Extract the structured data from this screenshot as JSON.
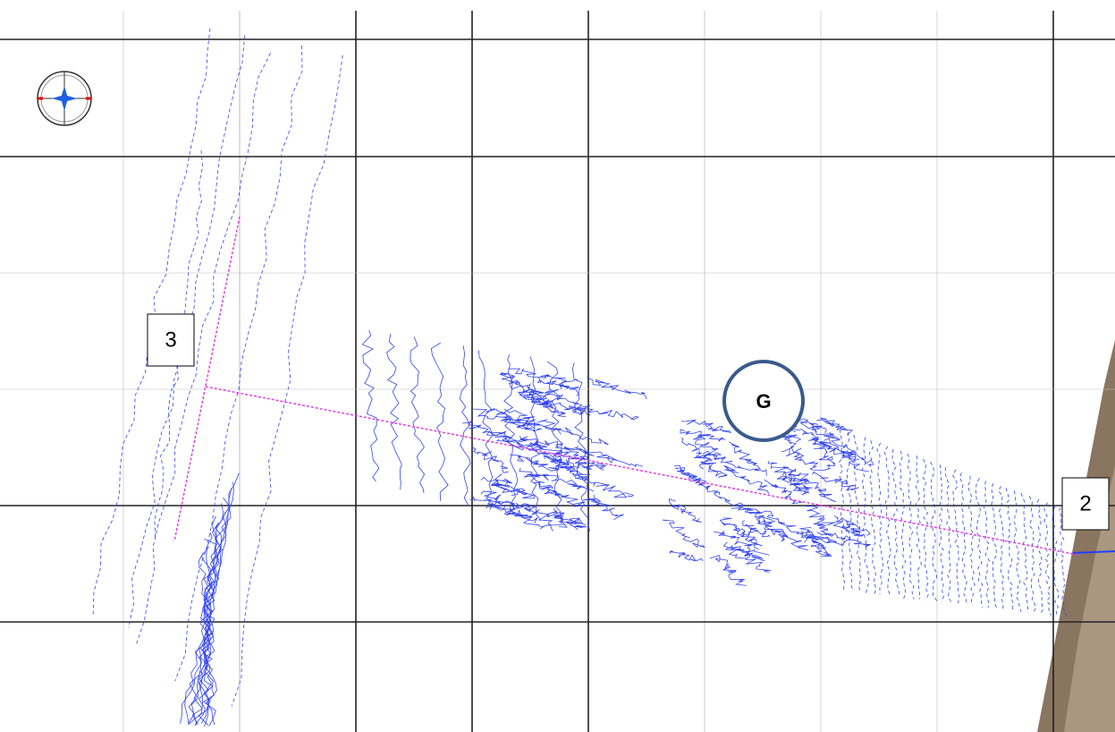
{
  "markers": [
    {
      "label": "3"
    },
    {
      "label": "2"
    },
    {
      "label": "G"
    }
  ]
}
